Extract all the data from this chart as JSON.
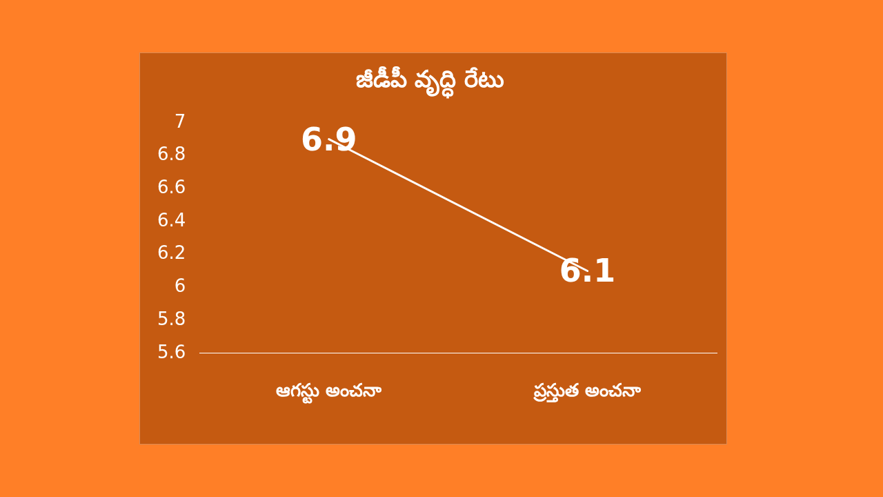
{
  "chart_data": {
    "type": "line",
    "title": "జీడీపీ వృద్ధి రేటు",
    "categories": [
      "ఆగస్టు అంచనా",
      "ప్రస్తుత అంచనా"
    ],
    "series": [
      {
        "color": "#ffffff",
        "values": [
          6.9,
          6.1
        ]
      }
    ],
    "ylim": [
      5.6,
      7
    ],
    "yticks": [
      5.6,
      5.8,
      6,
      6.2,
      6.4,
      6.6,
      6.8,
      7
    ],
    "grid": false,
    "legend": false,
    "marker": "none",
    "line_style": "solid",
    "data_labels": true
  }
}
